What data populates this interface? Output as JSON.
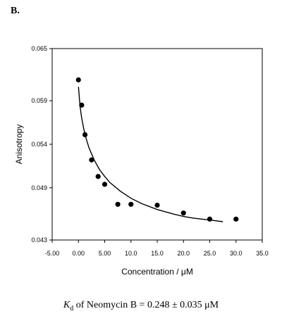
{
  "panel_label": "B.",
  "caption": {
    "k_symbol": "K",
    "k_subscript": "d",
    "text": " of Neomycin B = 0.248 ± 0.035 μM"
  },
  "chart_data": {
    "type": "scatter",
    "title": "",
    "xlabel": "Concentration / μM",
    "ylabel": "Anisotropy",
    "xlim": [
      -5,
      35
    ],
    "ylim": [
      0.043,
      0.065
    ],
    "x_ticks": [
      "-5.00",
      "0.00",
      "5.00",
      "10.0",
      "15.0",
      "20.0",
      "25.0",
      "30.0",
      "35.0"
    ],
    "y_ticks": [
      "0.065",
      "0.059",
      "0.054",
      "0.049",
      "0.043"
    ],
    "grid": false,
    "legend": "none",
    "series": [
      {
        "kind": "points",
        "x": [
          0.0,
          0.62,
          1.25,
          2.5,
          3.75,
          5.0,
          7.5,
          10.0,
          15.0,
          20.0,
          25.0,
          30.0
        ],
        "y": [
          0.0614,
          0.0585,
          0.0551,
          0.0522,
          0.0503,
          0.0494,
          0.0471,
          0.0471,
          0.047,
          0.0461,
          0.0454,
          0.0454
        ]
      },
      {
        "kind": "fit-curve",
        "x": [
          0.0,
          0.3,
          0.6,
          1.0,
          1.5,
          2.0,
          3.0,
          4.0,
          5.0,
          6.0,
          8.0,
          10.0,
          12.0,
          15.0,
          18.0,
          20.0,
          22.0,
          25.0,
          27.5
        ],
        "y": [
          0.0606,
          0.0584,
          0.0571,
          0.0558,
          0.0546,
          0.0536,
          0.0522,
          0.0511,
          0.0503,
          0.0496,
          0.0486,
          0.0478,
          0.0472,
          0.0465,
          0.046,
          0.0457,
          0.0455,
          0.0453,
          0.0451
        ]
      }
    ]
  }
}
